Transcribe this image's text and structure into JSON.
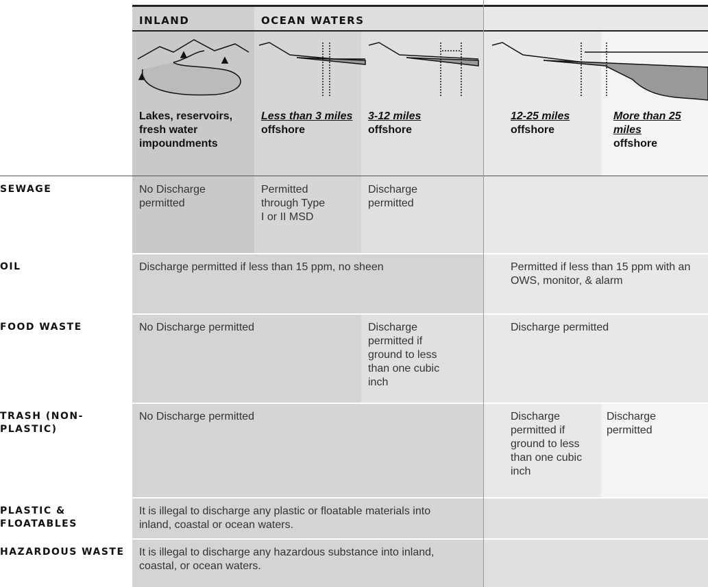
{
  "header": {
    "groups": [
      "INLAND",
      "OCEAN WATERS"
    ]
  },
  "zones": [
    {
      "label": "Lakes, reservoirs, fresh water impoundments"
    },
    {
      "distance": "Less than 3 miles",
      "suffix": "offshore"
    },
    {
      "distance": "3-12 miles",
      "suffix": "offshore"
    },
    {
      "distance": "12-25 miles",
      "suffix": "offshore"
    },
    {
      "distance": "More than 25 miles",
      "suffix": "offshore"
    }
  ],
  "rows": [
    {
      "name": "SEWAGE",
      "cells": [
        "No Discharge permitted",
        "Permitted through Type I or II MSD",
        "Discharge permitted"
      ]
    },
    {
      "name": "OIL",
      "cells": [
        "Discharge permitted if less than 15 ppm, no sheen",
        "Permitted if less than 15 ppm with an OWS, monitor, & alarm"
      ]
    },
    {
      "name": "FOOD WASTE",
      "cells": [
        "No Discharge permitted",
        "Discharge permitted if ground to less than one cubic inch",
        "Discharge permitted"
      ]
    },
    {
      "name": "TRASH (NON-PLASTIC)",
      "cells": [
        "No Discharge permitted",
        "Discharge permitted if ground to less than one cubic inch",
        "Discharge permitted"
      ]
    },
    {
      "name": "PLASTIC & FLOATABLES",
      "cells": [
        "It is illegal to discharge any plastic or floatable materials into inland, coastal or ocean waters."
      ]
    },
    {
      "name": "HAZARDOUS WASTE",
      "cells": [
        "It is illegal to discharge any hazardous substance into inland, coastal, or ocean waters."
      ]
    }
  ]
}
